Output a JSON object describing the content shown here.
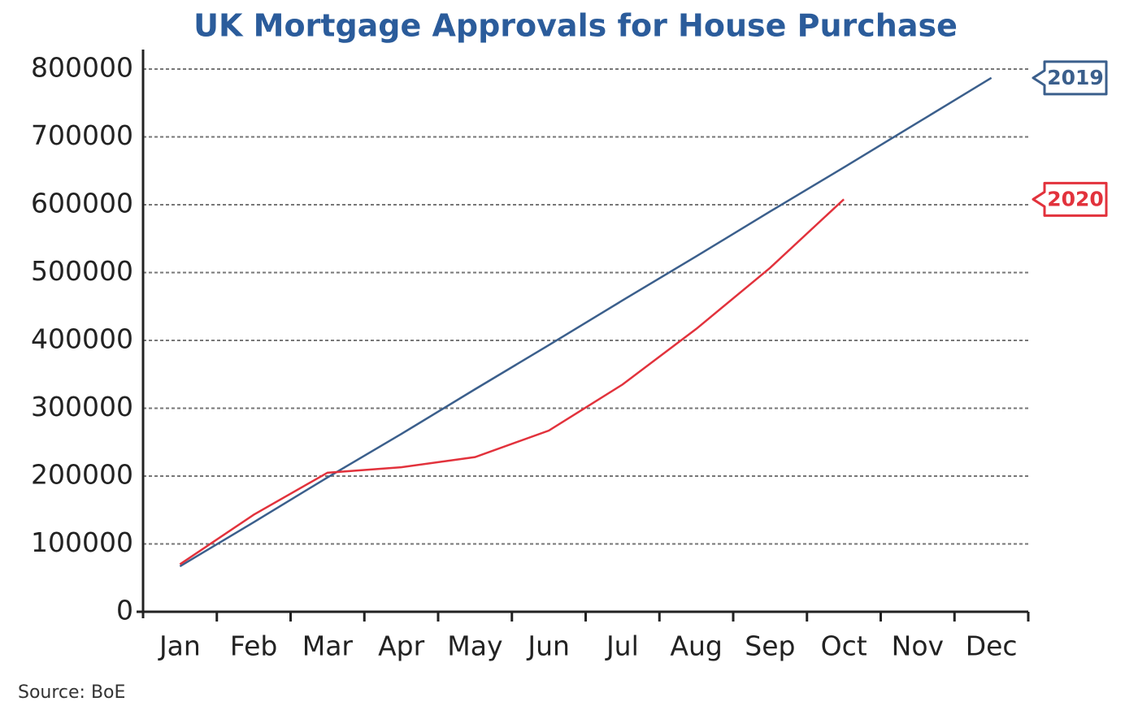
{
  "chart_data": {
    "type": "line",
    "title": "UK Mortgage Approvals for House Purchase",
    "source": "Source: BoE",
    "categories": [
      "Jan",
      "Feb",
      "Mar",
      "Apr",
      "May",
      "Jun",
      "Jul",
      "Aug",
      "Sep",
      "Oct",
      "Nov",
      "Dec"
    ],
    "series": [
      {
        "name": "2019",
        "color": "#3b5f8c",
        "values": [
          67000,
          132000,
          198000,
          262000,
          328000,
          393000,
          459000,
          524000,
          590000,
          655000,
          721000,
          787000
        ]
      },
      {
        "name": "2020",
        "color": "#e2323c",
        "values": [
          70000,
          143000,
          205000,
          213000,
          228000,
          267000,
          335000,
          417000,
          507000,
          608000,
          null,
          null
        ]
      }
    ],
    "ylim": [
      0,
      800000
    ],
    "yticks": [
      0,
      100000,
      200000,
      300000,
      400000,
      500000,
      600000,
      700000,
      800000
    ],
    "grid": true
  }
}
